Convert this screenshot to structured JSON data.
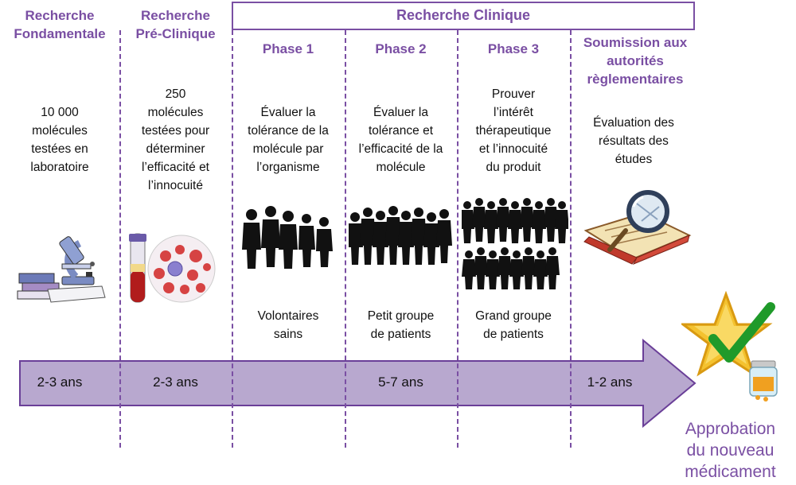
{
  "stages": {
    "fondamentale": {
      "title_l1": "Recherche",
      "title_l2": "Fondamentale",
      "desc": [
        "10 000",
        "molécules",
        "testées en",
        "laboratoire"
      ]
    },
    "preclinique": {
      "title_l1": "Recherche",
      "title_l2": "Pré-Clinique",
      "desc": [
        "250",
        "molécules",
        "testées pour",
        "déterminer",
        "l’efficacité et",
        "l’innocuité"
      ]
    },
    "clinique": {
      "title": "Recherche Clinique"
    },
    "phase1": {
      "title": "Phase 1",
      "desc": [
        "Évaluer la",
        "tolérance de la",
        "molécule par",
        "l’organisme"
      ],
      "group": [
        "Volontaires",
        "sains"
      ]
    },
    "phase2": {
      "title": "Phase 2",
      "desc": [
        "Évaluer la",
        "tolérance et",
        "l’efficacité de la",
        "molécule"
      ],
      "group": [
        "Petit groupe",
        "de patients"
      ]
    },
    "phase3": {
      "title": "Phase 3",
      "desc": [
        "Prouver",
        "l’intérêt",
        "thérapeutique",
        "et l’innocuité",
        "du produit"
      ],
      "group": [
        "Grand groupe",
        "de patients"
      ]
    },
    "soumission": {
      "title": [
        "Soumission aux",
        "autorités",
        "règlementaires"
      ],
      "desc": [
        "Évaluation des",
        "résultats des",
        "études"
      ]
    }
  },
  "durations": {
    "d1": "2-3 ans",
    "d2": "2-3 ans",
    "d3": "5-7 ans",
    "d4": "1-2 ans"
  },
  "approval": [
    "Approbation",
    "du nouveau",
    "médicament"
  ],
  "colors": {
    "accent": "#7a4fa3",
    "arrow_fill": "#b8a8cf",
    "arrow_stroke": "#6a3f98",
    "silhouette": "#111111"
  },
  "icons": {
    "microscope": "microscope-icon",
    "cells": "blood-cells-icon",
    "people": "people-silhouettes-icon",
    "magnifier": "magnifying-glass-icon",
    "star": "star-checkmark-icon"
  }
}
